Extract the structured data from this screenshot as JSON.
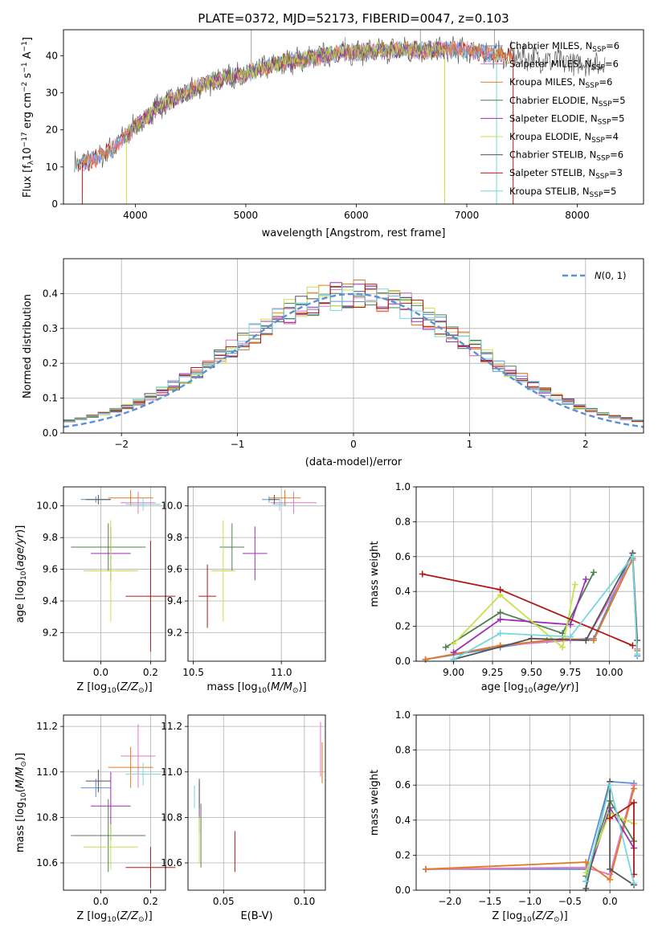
{
  "figure_title": "PLATE=0372, MJD=52173, FIBERID=0047, z=0.103",
  "colors": {
    "Chabrier MILES": "#5b8fd6",
    "Salpeter MILES": "#e377c2",
    "Kroupa MILES": "#e07b24",
    "Chabrier ELODIE": "#4f7f4f",
    "Salpeter ELODIE": "#9c2fb5",
    "Kroupa ELODIE": "#c8e04a",
    "Chabrier STELIB": "#555555",
    "Salpeter STELIB": "#b01818",
    "Kroupa STELIB": "#76d7de",
    "normal": "#5b8fd6"
  },
  "chart_data": [
    {
      "type": "line",
      "xlabel": "wavelength [Angstrom, rest frame]",
      "ylabel": "Flux [f_λ 10^-17 erg cm^-2 s^-1 A^-1]",
      "xlim": [
        3350,
        8600
      ],
      "ylim": [
        0,
        47
      ],
      "xticks": [
        4000,
        5000,
        6000,
        7000,
        8000
      ],
      "yticks": [
        0,
        10,
        20,
        30,
        40
      ],
      "grid": false,
      "legend_position": "right",
      "continuum": {
        "x": [
          3450,
          3600,
          3800,
          4000,
          4200,
          4400,
          4600,
          4800,
          5000,
          5200,
          5400,
          5600,
          5800,
          6000,
          6200,
          6400,
          6600,
          6800,
          7000,
          7200,
          7400,
          7600,
          7800,
          8000,
          8200
        ],
        "y": [
          11,
          11.5,
          15,
          21,
          26,
          29,
          32,
          34,
          35,
          37,
          38.5,
          39.5,
          40.5,
          41,
          41.3,
          41.5,
          41.5,
          41.7,
          41.5,
          40.5,
          40,
          39.5,
          38.5,
          38,
          38
        ]
      },
      "series": [
        {
          "name": "Chabrier MILES",
          "n_ssp": "6"
        },
        {
          "name": "Salpeter MILES",
          "n_ssp": "6"
        },
        {
          "name": "Kroupa MILES",
          "n_ssp": "6"
        },
        {
          "name": "Chabrier ELODIE",
          "n_ssp": "5"
        },
        {
          "name": "Salpeter ELODIE",
          "n_ssp": "5"
        },
        {
          "name": "Kroupa ELODIE",
          "n_ssp": "4"
        },
        {
          "name": "Chabrier STELIB",
          "n_ssp": "6"
        },
        {
          "name": "Salpeter STELIB",
          "n_ssp": "3"
        },
        {
          "name": "Kroupa STELIB",
          "n_ssp": "5"
        }
      ],
      "legend_sub": "SSP"
    },
    {
      "type": "step",
      "xlabel": "(data-model)/error",
      "ylabel": "Normed distribution",
      "xlim": [
        -2.5,
        2.5
      ],
      "ylim": [
        0,
        0.5
      ],
      "xticks": [
        -2,
        -1,
        0,
        1,
        2
      ],
      "yticks": [
        0.0,
        0.1,
        0.2,
        0.3,
        0.4
      ],
      "grid": true,
      "legend": "N(0,1)",
      "legend_position": "top-right",
      "bin_edges_start": -2.5,
      "bin_width": 0.1
    },
    {
      "type": "scatter-errorbar",
      "xlabel": "Z [log10(Z/Z☉)]",
      "ylabel": "age [log10(age/yr)]",
      "xlim": [
        -0.15,
        0.26
      ],
      "ylim": [
        9.02,
        10.12
      ],
      "xticks": [
        0.0,
        0.2
      ],
      "yticks": [
        9.2,
        9.4,
        9.6,
        9.8,
        10.0
      ],
      "points": [
        {
          "series": "Chabrier MILES",
          "x": -0.02,
          "y": 10.04,
          "xerr": 0.06,
          "yerr": 0.02
        },
        {
          "series": "Salpeter MILES",
          "x": 0.15,
          "y": 10.02,
          "xerr": 0.07,
          "yerr": 0.07
        },
        {
          "series": "Kroupa MILES",
          "x": 0.12,
          "y": 10.05,
          "xerr": 0.09,
          "yerr": 0.05
        },
        {
          "series": "Chabrier ELODIE",
          "x": 0.03,
          "y": 9.74,
          "xerr": 0.15,
          "yerr": 0.15
        },
        {
          "series": "Salpeter ELODIE",
          "x": 0.04,
          "y": 9.7,
          "xerr": 0.08,
          "yerr": 0.17
        },
        {
          "series": "Kroupa ELODIE",
          "x": 0.04,
          "y": 9.59,
          "xerr": 0.11,
          "yerr": 0.32
        },
        {
          "series": "Chabrier STELIB",
          "x": -0.01,
          "y": 10.04,
          "xerr": 0.05,
          "yerr": 0.03
        },
        {
          "series": "Salpeter STELIB",
          "x": 0.2,
          "y": 9.43,
          "xerr": 0.1,
          "yerr": 0.35
        },
        {
          "series": "Kroupa STELIB",
          "x": 0.17,
          "y": 10.01,
          "xerr": 0.07,
          "yerr": 0.04
        }
      ]
    },
    {
      "type": "scatter-errorbar",
      "xlabel": "mass [log10(M/M☉)]",
      "ylabel": "",
      "xlim": [
        10.47,
        11.25
      ],
      "ylim": [
        9.02,
        10.12
      ],
      "xticks": [
        10.5,
        11.0
      ],
      "yticks": [
        9.2,
        9.4,
        9.6,
        9.8,
        10.0
      ],
      "points": [
        {
          "series": "Chabrier MILES",
          "x": 10.93,
          "y": 10.04,
          "xerr": 0.04,
          "yerr": 0.02
        },
        {
          "series": "Salpeter MILES",
          "x": 11.07,
          "y": 10.02,
          "xerr": 0.13,
          "yerr": 0.07
        },
        {
          "series": "Kroupa MILES",
          "x": 11.02,
          "y": 10.05,
          "xerr": 0.09,
          "yerr": 0.05
        },
        {
          "series": "Chabrier ELODIE",
          "x": 10.72,
          "y": 9.74,
          "xerr": 0.07,
          "yerr": 0.15
        },
        {
          "series": "Salpeter ELODIE",
          "x": 10.85,
          "y": 9.7,
          "xerr": 0.07,
          "yerr": 0.17
        },
        {
          "series": "Kroupa ELODIE",
          "x": 10.67,
          "y": 9.59,
          "xerr": 0.07,
          "yerr": 0.32
        },
        {
          "series": "Chabrier STELIB",
          "x": 10.96,
          "y": 10.04,
          "xerr": 0.03,
          "yerr": 0.03
        },
        {
          "series": "Salpeter STELIB",
          "x": 10.58,
          "y": 9.43,
          "xerr": 0.05,
          "yerr": 0.2
        },
        {
          "series": "Kroupa STELIB",
          "x": 10.99,
          "y": 10.01,
          "xerr": 0.04,
          "yerr": 0.04
        }
      ]
    },
    {
      "type": "line",
      "xlabel": "age [log10(age/yr)]",
      "ylabel": "mass weight",
      "xlim": [
        8.76,
        10.22
      ],
      "ylim": [
        0,
        1.0
      ],
      "xticks": [
        9.0,
        9.25,
        9.5,
        9.75,
        10.0
      ],
      "yticks": [
        0.0,
        0.2,
        0.4,
        0.6,
        0.8,
        1.0
      ],
      "grid": true,
      "series": [
        {
          "name": "Chabrier MILES",
          "x": [
            8.82,
            9.3,
            9.6,
            9.9,
            10.15,
            10.18
          ],
          "y": [
            0.01,
            0.08,
            0.12,
            0.13,
            0.62,
            0.03
          ]
        },
        {
          "name": "Salpeter MILES",
          "x": [
            8.82,
            9.3,
            9.75,
            9.85,
            10.15,
            10.18
          ],
          "y": [
            0.01,
            0.09,
            0.12,
            0.12,
            0.58,
            0.07
          ]
        },
        {
          "name": "Kroupa MILES",
          "x": [
            8.82,
            9.3,
            9.7,
            9.9,
            10.15,
            10.18
          ],
          "y": [
            0.01,
            0.09,
            0.13,
            0.12,
            0.59,
            0.06
          ]
        },
        {
          "name": "Chabrier ELODIE",
          "x": [
            8.95,
            9.3,
            9.7,
            9.9
          ],
          "y": [
            0.08,
            0.28,
            0.16,
            0.51
          ]
        },
        {
          "name": "Salpeter ELODIE",
          "x": [
            9.0,
            9.3,
            9.75,
            9.85
          ],
          "y": [
            0.05,
            0.24,
            0.21,
            0.47
          ]
        },
        {
          "name": "Kroupa ELODIE",
          "x": [
            9.0,
            9.3,
            9.7,
            9.78
          ],
          "y": [
            0.1,
            0.38,
            0.08,
            0.44
          ]
        },
        {
          "name": "Chabrier STELIB",
          "x": [
            9.0,
            9.5,
            9.85,
            10.15,
            10.18
          ],
          "y": [
            0.01,
            0.13,
            0.12,
            0.62,
            0.12
          ]
        },
        {
          "name": "Salpeter STELIB",
          "x": [
            8.8,
            9.3,
            10.15
          ],
          "y": [
            0.5,
            0.41,
            0.09
          ]
        },
        {
          "name": "Kroupa STELIB",
          "x": [
            9.0,
            9.3,
            9.75,
            10.15,
            10.18
          ],
          "y": [
            0.01,
            0.16,
            0.14,
            0.6,
            0.04
          ]
        }
      ]
    },
    {
      "type": "scatter-errorbar",
      "xlabel": "Z [log10(Z/Z☉)]",
      "ylabel": "mass [log10(M/M☉)]",
      "xlim": [
        -0.15,
        0.26
      ],
      "ylim": [
        10.48,
        11.25
      ],
      "xticks": [
        0.0,
        0.2
      ],
      "yticks": [
        10.6,
        10.8,
        11.0,
        11.2
      ],
      "points": [
        {
          "series": "Chabrier MILES",
          "x": -0.02,
          "y": 10.93,
          "xerr": 0.06,
          "yerr": 0.04
        },
        {
          "series": "Salpeter MILES",
          "x": 0.15,
          "y": 11.07,
          "xerr": 0.07,
          "yerr": 0.14
        },
        {
          "series": "Kroupa MILES",
          "x": 0.12,
          "y": 11.02,
          "xerr": 0.09,
          "yerr": 0.09
        },
        {
          "series": "Chabrier ELODIE",
          "x": 0.03,
          "y": 10.72,
          "xerr": 0.15,
          "yerr": 0.16
        },
        {
          "series": "Salpeter ELODIE",
          "x": 0.04,
          "y": 10.85,
          "xerr": 0.08,
          "yerr": 0.15
        },
        {
          "series": "Kroupa ELODIE",
          "x": 0.04,
          "y": 10.67,
          "xerr": 0.11,
          "yerr": 0.1
        },
        {
          "series": "Chabrier STELIB",
          "x": -0.01,
          "y": 10.96,
          "xerr": 0.05,
          "yerr": 0.05
        },
        {
          "series": "Salpeter STELIB",
          "x": 0.2,
          "y": 10.58,
          "xerr": 0.1,
          "yerr": 0.09
        },
        {
          "series": "Kroupa STELIB",
          "x": 0.17,
          "y": 10.99,
          "xerr": 0.07,
          "yerr": 0.05
        }
      ]
    },
    {
      "type": "scatter-errorbar",
      "xlabel": "E(B-V)",
      "ylabel": "",
      "xlim": [
        0.028,
        0.113
      ],
      "ylim": [
        10.48,
        11.25
      ],
      "xticks": [
        0.05,
        0.1
      ],
      "yticks": [
        10.6,
        10.8,
        11.0,
        11.2
      ],
      "points": [
        {
          "series": "Chabrier MILES",
          "x": 0.032,
          "y": 10.92,
          "xerr": 0,
          "yerr": 0.02
        },
        {
          "series": "Salpeter MILES",
          "x": 0.11,
          "y": 11.1,
          "xerr": 0,
          "yerr": 0.12
        },
        {
          "series": "Kroupa MILES",
          "x": 0.111,
          "y": 11.04,
          "xerr": 0,
          "yerr": 0.09
        },
        {
          "series": "Chabrier ELODIE",
          "x": 0.036,
          "y": 10.72,
          "xerr": 0,
          "yerr": 0.14
        },
        {
          "series": "Salpeter ELODIE",
          "x": 0.035,
          "y": 10.85,
          "xerr": 0,
          "yerr": 0.12
        },
        {
          "series": "Kroupa ELODIE",
          "x": 0.035,
          "y": 10.7,
          "xerr": 0,
          "yerr": 0.1
        },
        {
          "series": "Chabrier STELIB",
          "x": 0.035,
          "y": 10.9,
          "xerr": 0,
          "yerr": 0.06
        },
        {
          "series": "Salpeter STELIB",
          "x": 0.057,
          "y": 10.65,
          "xerr": 0,
          "yerr": 0.09
        },
        {
          "series": "Kroupa STELIB",
          "x": 0.032,
          "y": 10.89,
          "xerr": 0,
          "yerr": 0.05
        }
      ]
    },
    {
      "type": "line",
      "xlabel": "Z [log10(Z/Z☉)]",
      "ylabel": "mass weight",
      "xlim": [
        -2.42,
        0.42
      ],
      "ylim": [
        0,
        1.0
      ],
      "xticks": [
        -2.0,
        -1.5,
        -1.0,
        -0.5,
        0.0
      ],
      "yticks": [
        0.0,
        0.2,
        0.4,
        0.6,
        0.8,
        1.0
      ],
      "grid": true,
      "series": [
        {
          "name": "Chabrier MILES",
          "x": [
            -2.3,
            -0.3,
            0.0,
            0.3
          ],
          "y": [
            0.12,
            0.12,
            0.62,
            0.61
          ]
        },
        {
          "name": "Salpeter MILES",
          "x": [
            -2.3,
            -0.3,
            0.0,
            0.3
          ],
          "y": [
            0.12,
            0.13,
            0.09,
            0.6
          ]
        },
        {
          "name": "Kroupa MILES",
          "x": [
            -2.3,
            -0.3,
            0.0,
            0.3
          ],
          "y": [
            0.12,
            0.16,
            0.06,
            0.58
          ]
        },
        {
          "name": "Chabrier ELODIE",
          "x": [
            -0.3,
            0.0,
            0.3
          ],
          "y": [
            0.08,
            0.51,
            0.28
          ]
        },
        {
          "name": "Salpeter ELODIE",
          "x": [
            -0.3,
            0.0,
            0.3
          ],
          "y": [
            0.05,
            0.47,
            0.24
          ]
        },
        {
          "name": "Kroupa ELODIE",
          "x": [
            -0.3,
            0.0,
            0.3
          ],
          "y": [
            0.1,
            0.44,
            0.38
          ]
        },
        {
          "name": "Chabrier STELIB",
          "x": [
            -0.3,
            0.0,
            0.0,
            0.3
          ],
          "y": [
            0.01,
            0.62,
            0.12,
            0.03
          ]
        },
        {
          "name": "Salpeter STELIB",
          "x": [
            0.0,
            0.3,
            0.3
          ],
          "y": [
            0.41,
            0.5,
            0.09
          ]
        },
        {
          "name": "Kroupa STELIB",
          "x": [
            -0.3,
            0.0,
            0.3
          ],
          "y": [
            0.05,
            0.6,
            0.04
          ]
        }
      ]
    }
  ]
}
